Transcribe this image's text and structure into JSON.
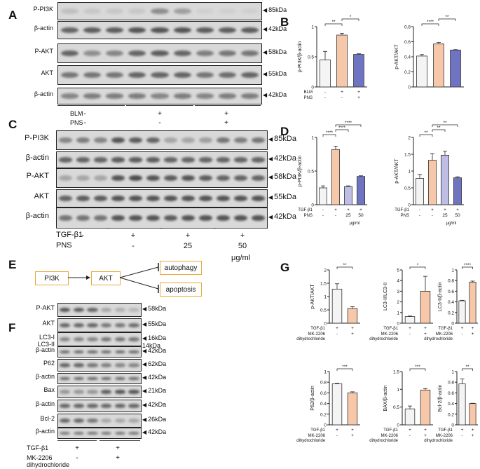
{
  "panels": {
    "A": "A",
    "B": "B",
    "C": "C",
    "D": "D",
    "E": "E",
    "F": "F",
    "G": "G"
  },
  "panelA": {
    "rows": [
      {
        "label": "P-PI3K",
        "kda": "85kDa"
      },
      {
        "label": "β-actin",
        "kda": "42kDa"
      },
      {
        "label": "P-AKT",
        "kda": "58kDa"
      },
      {
        "label": "AKT",
        "kda": "55kDa"
      },
      {
        "label": "β-actin",
        "kda": "42kDa"
      }
    ],
    "conditions": [
      {
        "label": "BLM",
        "signs": [
          "-",
          "+",
          "+"
        ]
      },
      {
        "label": "PNS",
        "signs": [
          "-",
          "-",
          "+"
        ]
      }
    ]
  },
  "panelC": {
    "rows": [
      {
        "label": "P-PI3K",
        "kda": "85kDa"
      },
      {
        "label": "β-actin",
        "kda": "42kDa"
      },
      {
        "label": "P-AKT",
        "kda": "58kDa"
      },
      {
        "label": "AKT",
        "kda": "55kDa"
      },
      {
        "label": "β-actin",
        "kda": "42kDa"
      }
    ],
    "conditions": [
      {
        "label": "TGF-β1",
        "signs": [
          "-",
          "+",
          "+",
          "+"
        ]
      },
      {
        "label": "PNS",
        "signs": [
          "",
          "-",
          "25",
          "50"
        ]
      }
    ],
    "unit": "μg/ml"
  },
  "panelE": {
    "nodes": [
      "PI3K",
      "AKT",
      "autophagy",
      "apoptosis"
    ]
  },
  "panelF": {
    "rows": [
      {
        "label": "P-AKT",
        "kda": "58kDa"
      },
      {
        "label": "AKT",
        "kda": "55kDa"
      },
      {
        "label": "LC3-I\nLC3-II",
        "kda": "16kDa\n14kDa"
      },
      {
        "label": "β-actin",
        "kda": "42kDa"
      },
      {
        "label": "P62",
        "kda": "62kDa"
      },
      {
        "label": "β-actin",
        "kda": "42kDa"
      },
      {
        "label": "Bax",
        "kda": "21kDa"
      },
      {
        "label": "β-actin",
        "kda": "42kDa"
      },
      {
        "label": "Bcl-2",
        "kda": "26kDa"
      },
      {
        "label": "β-actin",
        "kda": "42kDa"
      }
    ],
    "conditions": [
      {
        "label": "TGF-β1",
        "signs": [
          "+",
          "+"
        ]
      },
      {
        "label": "MK-2206\ndihydrochloride",
        "signs": [
          "-",
          "+"
        ]
      }
    ]
  },
  "chart_data": [
    {
      "id": "B1",
      "type": "bar",
      "ylabel": "p-PI3K/β-actin",
      "ylim": [
        0,
        1.0
      ],
      "yticks": [
        0.0,
        0.5,
        1.0
      ],
      "values": [
        0.45,
        0.86,
        0.54
      ],
      "errors": [
        0.14,
        0.03,
        0.01
      ],
      "colors": [
        "#f4f4f4",
        "#f6c7a8",
        "#6f74c2"
      ],
      "conditions": [
        {
          "label": "BLM",
          "signs": [
            "-",
            "+",
            "+"
          ]
        },
        {
          "label": "PNS",
          "signs": [
            "-",
            "-",
            "+"
          ]
        }
      ],
      "sig": [
        {
          "a": 0,
          "b": 1,
          "text": "**"
        },
        {
          "a": 1,
          "b": 2,
          "text": "*"
        }
      ]
    },
    {
      "id": "B2",
      "type": "bar",
      "ylabel": "p-AKT/AKT",
      "ylim": [
        0,
        0.8
      ],
      "yticks": [
        0.0,
        0.2,
        0.4,
        0.6,
        0.8
      ],
      "values": [
        0.41,
        0.57,
        0.49
      ],
      "errors": [
        0.02,
        0.02,
        0.005
      ],
      "colors": [
        "#f4f4f4",
        "#f6c7a8",
        "#6f74c2"
      ],
      "conditions": [
        {
          "label": "",
          "signs": [
            "",
            "",
            ""
          ]
        }
      ],
      "sig": [
        {
          "a": 0,
          "b": 1,
          "text": "****"
        },
        {
          "a": 1,
          "b": 2,
          "text": "**"
        }
      ]
    },
    {
      "id": "D1",
      "type": "bar",
      "ylabel": "p-PI3K/β-actin",
      "ylim": [
        0,
        1.0
      ],
      "yticks": [
        0.0,
        0.5,
        1.0
      ],
      "values": [
        0.25,
        0.82,
        0.27,
        0.42
      ],
      "errors": [
        0.03,
        0.05,
        0.01,
        0.01
      ],
      "colors": [
        "#f4f4f4",
        "#f6c7a8",
        "#bdbde6",
        "#6f74c2"
      ],
      "conditions": [
        {
          "label": "TGF-β1",
          "signs": [
            "-",
            "+",
            "+",
            "+"
          ]
        },
        {
          "label": "PNS",
          "signs": [
            "-",
            "-",
            "25",
            "50"
          ]
        }
      ],
      "unit": "μg/ml",
      "sig": [
        {
          "a": 0,
          "b": 1,
          "text": "****"
        },
        {
          "a": 1,
          "b": 2,
          "text": "****"
        },
        {
          "a": 1,
          "b": 3,
          "text": "****"
        }
      ]
    },
    {
      "id": "D2",
      "type": "bar",
      "ylabel": "p-AKT/AKT",
      "ylim": [
        0,
        2.0
      ],
      "yticks": [
        0.0,
        0.5,
        1.0,
        1.5,
        2.0
      ],
      "values": [
        0.78,
        1.32,
        1.47,
        0.8
      ],
      "errors": [
        0.12,
        0.2,
        0.12,
        0.03
      ],
      "colors": [
        "#f4f4f4",
        "#f6c7a8",
        "#bdbde6",
        "#6f74c2"
      ],
      "conditions": [
        {
          "label": "TGF-β1",
          "signs": [
            "-",
            "+",
            "+",
            "+"
          ]
        },
        {
          "label": "PNS",
          "signs": [
            "-",
            "-",
            "25",
            "50"
          ]
        }
      ],
      "unit": "μg/ml",
      "sig": [
        {
          "a": 0,
          "b": 1,
          "text": "**"
        },
        {
          "a": 1,
          "b": 2,
          "text": "**"
        },
        {
          "a": 1,
          "b": 3,
          "text": "**"
        }
      ]
    },
    {
      "id": "G1",
      "type": "bar",
      "ylabel": "p-AKT/AKT",
      "ylim": [
        0,
        2.0
      ],
      "yticks": [
        0.0,
        0.5,
        1.0,
        1.5,
        2.0
      ],
      "values": [
        1.28,
        0.55
      ],
      "errors": [
        0.2,
        0.07
      ],
      "colors": [
        "#f4f4f4",
        "#f6c7a8"
      ],
      "conditions": [
        {
          "label": "TGF-β1",
          "signs": [
            "+",
            "+"
          ]
        },
        {
          "label": "MK-2206\ndihydrochloride",
          "signs": [
            "-",
            "+"
          ]
        }
      ],
      "sig": [
        {
          "a": 0,
          "b": 1,
          "text": "**"
        }
      ]
    },
    {
      "id": "G2",
      "type": "bar",
      "ylabel": "LC3-II/LC3-II",
      "ylim": [
        0,
        5
      ],
      "yticks": [
        0,
        1,
        2,
        3,
        4,
        5
      ],
      "values": [
        0.62,
        3.0
      ],
      "errors": [
        0.05,
        1.4
      ],
      "colors": [
        "#f4f4f4",
        "#f6c7a8"
      ],
      "conditions": [
        {
          "label": "TGF-β1",
          "signs": [
            "+",
            "+"
          ]
        },
        {
          "label": "MK-2206\ndihydrochloride",
          "signs": [
            "-",
            "+"
          ]
        }
      ],
      "sig": [
        {
          "a": 0,
          "b": 1,
          "text": "*"
        }
      ]
    },
    {
      "id": "G3",
      "type": "bar",
      "ylabel": "LC3-II/β-actin",
      "ylim": [
        0,
        1.0
      ],
      "yticks": [
        0.0,
        0.2,
        0.4,
        0.6,
        0.8,
        1.0
      ],
      "values": [
        0.42,
        0.77
      ],
      "errors": [
        0.01,
        0.02
      ],
      "colors": [
        "#f4f4f4",
        "#f6c7a8"
      ],
      "conditions": [
        {
          "label": "TGF-β1",
          "signs": [
            "+",
            "+"
          ]
        },
        {
          "label": "MK-2206\ndihydrochloride",
          "signs": [
            "-",
            "+"
          ]
        }
      ],
      "sig": [
        {
          "a": 0,
          "b": 1,
          "text": "****"
        }
      ]
    },
    {
      "id": "G4",
      "type": "bar",
      "ylabel": "P62/β-actin",
      "ylim": [
        0,
        1.0
      ],
      "yticks": [
        0.0,
        0.2,
        0.4,
        0.6,
        0.8,
        1.0
      ],
      "values": [
        0.77,
        0.6
      ],
      "errors": [
        0.01,
        0.02
      ],
      "colors": [
        "#f4f4f4",
        "#f6c7a8"
      ],
      "conditions": [
        {
          "label": "TGF-β1",
          "signs": [
            "+",
            "+"
          ]
        },
        {
          "label": "MK-2206\ndihydrochloride",
          "signs": [
            "-",
            "+"
          ]
        }
      ],
      "sig": [
        {
          "a": 0,
          "b": 1,
          "text": "***"
        }
      ]
    },
    {
      "id": "G5",
      "type": "bar",
      "ylabel": "BAX/β-actin",
      "ylim": [
        0,
        1.5
      ],
      "yticks": [
        0.0,
        0.5,
        1.0,
        1.5
      ],
      "values": [
        0.45,
        0.98
      ],
      "errors": [
        0.08,
        0.04
      ],
      "colors": [
        "#f4f4f4",
        "#f6c7a8"
      ],
      "conditions": [
        {
          "label": "TGF-β1",
          "signs": [
            "+",
            "+"
          ]
        },
        {
          "label": "MK-2206\ndihydrochloride",
          "signs": [
            "-",
            "+"
          ]
        }
      ],
      "sig": [
        {
          "a": 0,
          "b": 1,
          "text": "***"
        }
      ]
    },
    {
      "id": "G6",
      "type": "bar",
      "ylabel": "Bcl-2/β-actin",
      "ylim": [
        0,
        1.0
      ],
      "yticks": [
        0.0,
        0.2,
        0.4,
        0.6,
        0.8,
        1.0
      ],
      "values": [
        0.77,
        0.4
      ],
      "errors": [
        0.09,
        0.005
      ],
      "colors": [
        "#f4f4f4",
        "#f6c7a8"
      ],
      "conditions": [
        {
          "label": "TGF-β1",
          "signs": [
            "+",
            "+"
          ]
        },
        {
          "label": "MK-2206\ndihydrochloride",
          "signs": [
            "-",
            "+"
          ]
        }
      ],
      "sig": [
        {
          "a": 0,
          "b": 1,
          "text": "**"
        }
      ]
    }
  ]
}
